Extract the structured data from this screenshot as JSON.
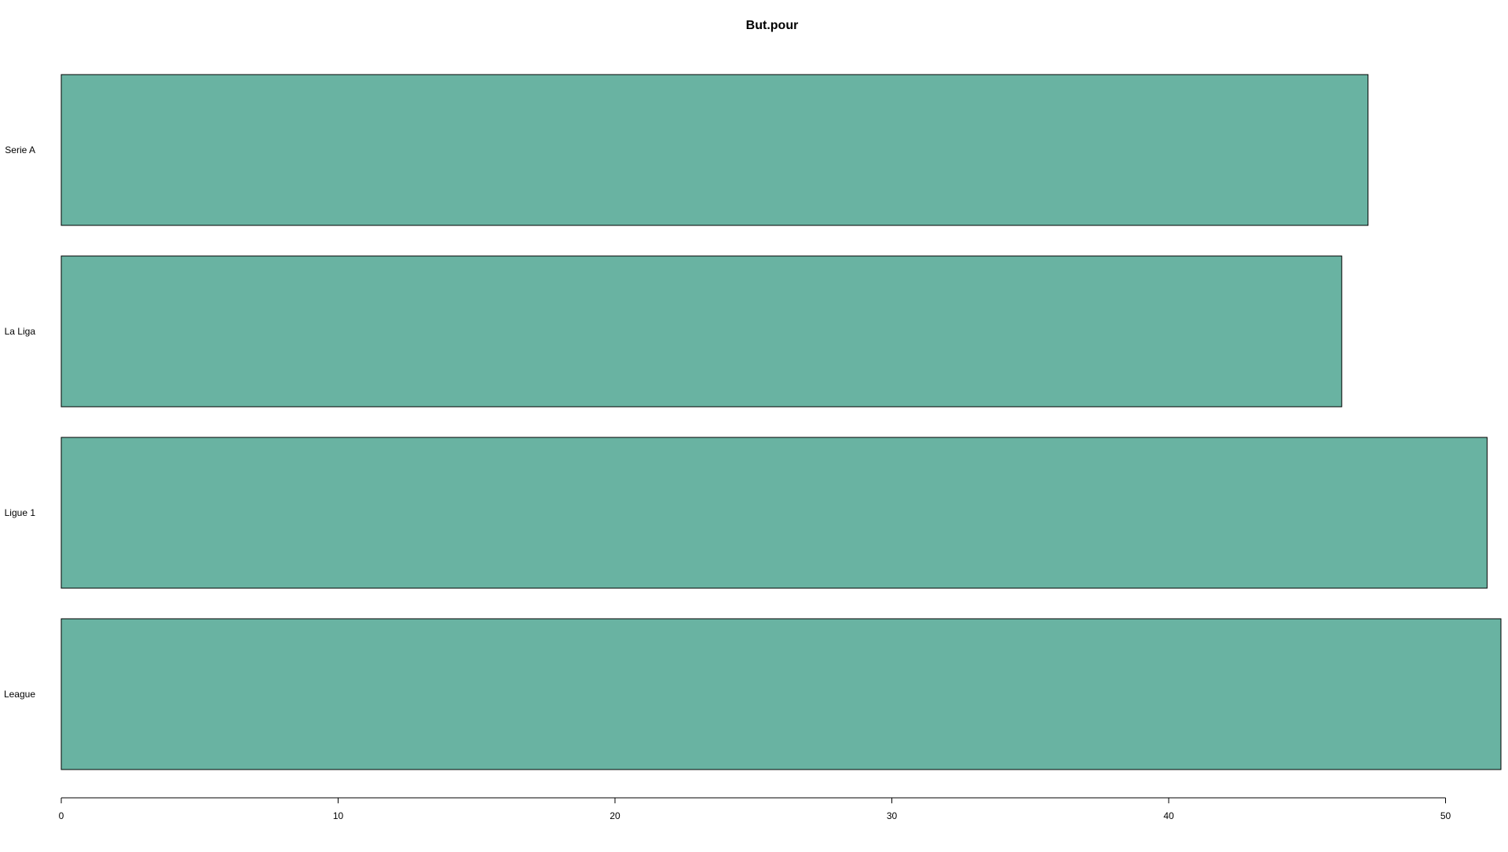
{
  "chart_data": {
    "type": "bar",
    "orientation": "horizontal",
    "title": "But.pour",
    "xlabel": "",
    "ylabel": "",
    "categories": [
      "Serie A",
      "La Liga",
      "Ligue 1",
      "League"
    ],
    "values": [
      47.2,
      46.25,
      51.5,
      52
    ],
    "xlim": [
      0,
      52
    ],
    "xticks": [
      0,
      10,
      20,
      30,
      40,
      50
    ],
    "grid": false,
    "legend": "none",
    "bar_color": "#69b3a2",
    "bar_border_color": "#000000"
  }
}
